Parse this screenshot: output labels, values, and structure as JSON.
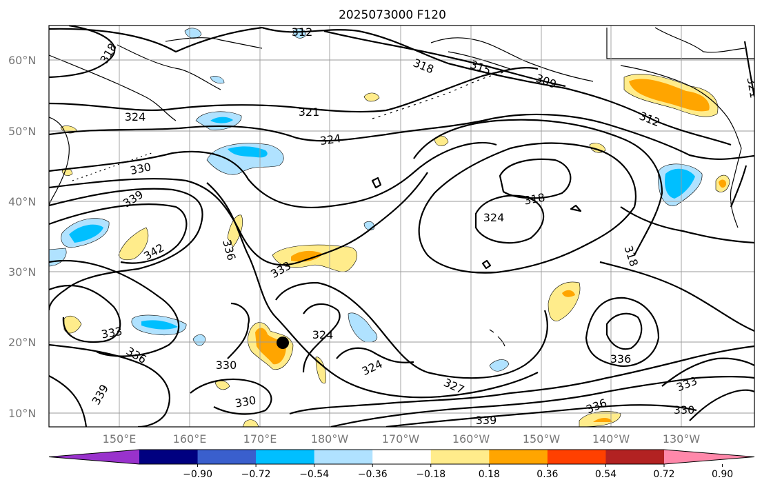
{
  "title": "2025073000 F120",
  "lat_labels": [
    "60°N",
    "50°N",
    "40°N",
    "30°N",
    "20°N",
    "10°N"
  ],
  "lon_labels": [
    "150°E",
    "160°E",
    "170°E",
    "180°W",
    "170°W",
    "160°W",
    "150°W",
    "140°W",
    "130°W"
  ],
  "colorbar": {
    "tick_labels": [
      "−0.90",
      "−0.72",
      "−0.54",
      "−0.36",
      "−0.18",
      "0.18",
      "0.36",
      "0.54",
      "0.72",
      "0.90"
    ],
    "colors": [
      "#9932cc",
      "#000080",
      "#3a5fcd",
      "#00bfff",
      "#b0e2ff",
      "#ffffff",
      "#ffec8b",
      "#ffa500",
      "#ff4000",
      "#b22222",
      "#ff88aa"
    ]
  },
  "contour_labels": [
    "312",
    "318",
    "315",
    "309",
    "321",
    "318",
    "324",
    "312",
    "321",
    "330",
    "339",
    "324",
    "318",
    "342",
    "336",
    "333",
    "324",
    "318",
    "333",
    "324",
    "336",
    "330",
    "324",
    "327",
    "330",
    "336",
    "333",
    "330",
    "336",
    "339",
    "339"
  ],
  "marker": "black-dot"
}
